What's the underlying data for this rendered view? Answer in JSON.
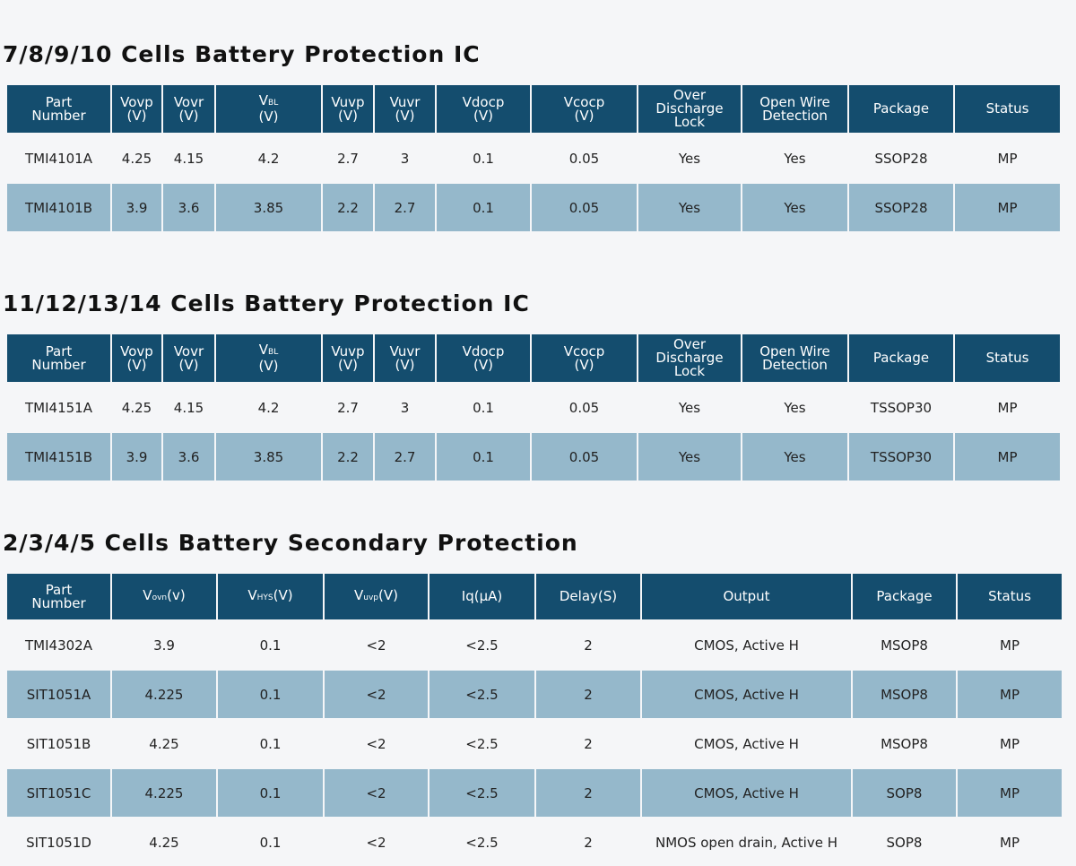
{
  "sections": [
    {
      "title": "7/8/9/10 Cells Battery Protection IC",
      "headers": [
        {
          "l1": "Part",
          "l2": "Number"
        },
        {
          "l1": "Vovp",
          "l2": "(V)"
        },
        {
          "l1": "Vovr",
          "l2": "(V)"
        },
        {
          "main": "V",
          "sub": "BL",
          "l2": "(V)"
        },
        {
          "l1": "Vuvp",
          "l2": "(V)"
        },
        {
          "l1": "Vuvr",
          "l2": "(V)"
        },
        {
          "l1": "Vdocp",
          "l2": "(V)"
        },
        {
          "l1": "Vcocp",
          "l2": "(V)"
        },
        {
          "l1": "Over",
          "l2": "Discharge",
          "l3": "Lock"
        },
        {
          "l1": "Open Wire",
          "l2": "Detection"
        },
        {
          "l1": "Package"
        },
        {
          "l1": "Status"
        }
      ],
      "rows": [
        [
          "TMI4101A",
          "4.25",
          "4.15",
          "4.2",
          "2.7",
          "3",
          "0.1",
          "0.05",
          "Yes",
          "Yes",
          "SSOP28",
          "MP"
        ],
        [
          "TMI4101B",
          "3.9",
          "3.6",
          "3.85",
          "2.2",
          "2.7",
          "0.1",
          "0.05",
          "Yes",
          "Yes",
          "SSOP28",
          "MP"
        ]
      ]
    },
    {
      "title": "11/12/13/14 Cells Battery Protection IC",
      "headers": [
        {
          "l1": "Part",
          "l2": "Number"
        },
        {
          "l1": "Vovp",
          "l2": "(V)"
        },
        {
          "l1": "Vovr",
          "l2": "(V)"
        },
        {
          "main": "V",
          "sub": "BL",
          "l2": "(V)"
        },
        {
          "l1": "Vuvp",
          "l2": "(V)"
        },
        {
          "l1": "Vuvr",
          "l2": "(V)"
        },
        {
          "l1": "Vdocp",
          "l2": "(V)"
        },
        {
          "l1": "Vcocp",
          "l2": "(V)"
        },
        {
          "l1": "Over",
          "l2": "Discharge",
          "l3": "Lock"
        },
        {
          "l1": "Open Wire",
          "l2": "Detection"
        },
        {
          "l1": "Package"
        },
        {
          "l1": "Status"
        }
      ],
      "rows": [
        [
          "TMI4151A",
          "4.25",
          "4.15",
          "4.2",
          "2.7",
          "3",
          "0.1",
          "0.05",
          "Yes",
          "Yes",
          "TSSOP30",
          "MP"
        ],
        [
          "TMI4151B",
          "3.9",
          "3.6",
          "3.85",
          "2.2",
          "2.7",
          "0.1",
          "0.05",
          "Yes",
          "Yes",
          "TSSOP30",
          "MP"
        ]
      ]
    },
    {
      "title": "2/3/4/5 Cells Battery Secondary Protection",
      "headers": [
        {
          "l1": "Part",
          "l2": "Number"
        },
        {
          "main": "V",
          "sub": "ovn",
          "tail": "(v)"
        },
        {
          "main": "V",
          "sub": "HYS",
          "tail": "(V)"
        },
        {
          "main": "V",
          "sub": "uvp",
          "tail": "(V)"
        },
        {
          "l1": "Iq(μA)"
        },
        {
          "l1": "Delay(S)"
        },
        {
          "l1": "Output"
        },
        {
          "l1": "Package"
        },
        {
          "l1": "Status"
        }
      ],
      "rows": [
        [
          "TMI4302A",
          "3.9",
          "0.1",
          "<2",
          "<2.5",
          "2",
          "CMOS, Active H",
          "MSOP8",
          "MP"
        ],
        [
          "SIT1051A",
          "4.225",
          "0.1",
          "<2",
          "<2.5",
          "2",
          "CMOS, Active H",
          "MSOP8",
          "MP"
        ],
        [
          "SIT1051B",
          "4.25",
          "0.1",
          "<2",
          "<2.5",
          "2",
          "CMOS, Active H",
          "MSOP8",
          "MP"
        ],
        [
          "SIT1051C",
          "4.225",
          "0.1",
          "<2",
          "<2.5",
          "2",
          "CMOS, Active H",
          "SOP8",
          "MP"
        ],
        [
          "SIT1051D",
          "4.25",
          "0.1",
          "<2",
          "<2.5",
          "2",
          "NMOS open drain, Active H",
          "SOP8",
          "MP"
        ]
      ]
    }
  ],
  "colors": {
    "header_bg": "#144d6e",
    "alt_row_bg": "#95b8cb",
    "page_bg": "#f5f6f8"
  }
}
